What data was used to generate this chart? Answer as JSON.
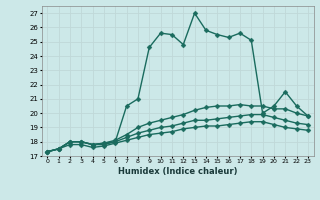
{
  "xlabel": "Humidex (Indice chaleur)",
  "bg_color": "#cce8e8",
  "grid_color": "#b8d8d8",
  "line_color": "#1a6b5e",
  "xlim": [
    -0.5,
    23.5
  ],
  "ylim": [
    17,
    27.5
  ],
  "yticks": [
    17,
    18,
    19,
    20,
    21,
    22,
    23,
    24,
    25,
    26,
    27
  ],
  "xticks": [
    0,
    1,
    2,
    3,
    4,
    5,
    6,
    7,
    8,
    9,
    10,
    11,
    12,
    13,
    14,
    15,
    16,
    17,
    18,
    19,
    20,
    21,
    22,
    23
  ],
  "series": [
    [
      17.3,
      17.5,
      18.0,
      18.0,
      17.8,
      17.8,
      18.0,
      20.5,
      21.0,
      24.6,
      25.6,
      25.5,
      24.8,
      27.0,
      25.8,
      25.5,
      25.3,
      25.6,
      25.1,
      20.0,
      20.5,
      21.5,
      20.5,
      19.8
    ],
    [
      17.3,
      17.5,
      18.0,
      18.0,
      17.8,
      17.9,
      18.1,
      18.5,
      19.0,
      19.3,
      19.5,
      19.7,
      19.9,
      20.2,
      20.4,
      20.5,
      20.5,
      20.6,
      20.5,
      20.5,
      20.3,
      20.3,
      20.0,
      19.8
    ],
    [
      17.3,
      17.5,
      18.0,
      18.0,
      17.8,
      17.9,
      18.0,
      18.3,
      18.6,
      18.8,
      19.0,
      19.1,
      19.3,
      19.5,
      19.5,
      19.6,
      19.7,
      19.8,
      19.9,
      19.9,
      19.7,
      19.5,
      19.3,
      19.2
    ],
    [
      17.3,
      17.5,
      17.8,
      17.8,
      17.6,
      17.7,
      17.9,
      18.1,
      18.3,
      18.5,
      18.6,
      18.7,
      18.9,
      19.0,
      19.1,
      19.1,
      19.2,
      19.3,
      19.4,
      19.4,
      19.2,
      19.0,
      18.9,
      18.8
    ]
  ],
  "linewidths": [
    1.0,
    1.0,
    1.0,
    1.0
  ],
  "markersizes": [
    2.5,
    2.5,
    2.5,
    2.5
  ]
}
